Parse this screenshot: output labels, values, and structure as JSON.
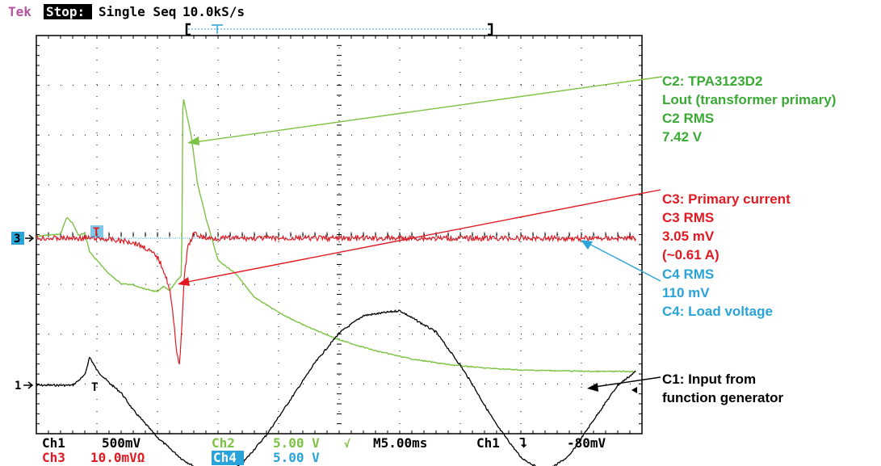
{
  "header": {
    "brand": "Tek",
    "state": "Stop:",
    "mode": "Single Seq",
    "rate": "10.0kS/s"
  },
  "markers": {
    "ch3": "3",
    "ch1": "1",
    "trigger": "T"
  },
  "readout": {
    "ch1_label": "Ch1",
    "ch1_scale": "500mV",
    "ch2_label": "Ch2",
    "ch2_scale": "5.00 V",
    "ch2_bw": "√",
    "timebase": "M5.00ms",
    "trig_src": "Ch1",
    "trig_slope": "⮧",
    "trig_level": "-80mV",
    "ch3_label": "Ch3",
    "ch3_scale": "10.0mVΩ",
    "ch4_label": "Ch4",
    "ch4_scale": "5.00 V"
  },
  "annotations": {
    "c2": [
      "C2: TPA3123D2",
      "Lout (transformer primary)",
      "C2 RMS",
      "7.42 V"
    ],
    "c3": [
      "C3: Primary current",
      "C3 RMS",
      "3.05 mV",
      "(~0.61 A)"
    ],
    "c4": [
      "C4 RMS",
      "110 mV",
      "C4: Load voltage"
    ],
    "c1": [
      "C1: Input from",
      "function generator"
    ]
  },
  "colors": {
    "ch1": "#000000",
    "ch2": "#7cc243",
    "ch2_text": "#3aaa35",
    "ch3": "#e01a22",
    "ch4": "#29a3d8",
    "brand": "#b5539f",
    "grid": "#000000"
  },
  "chart_data": {
    "type": "line",
    "x_unit": "ms",
    "xlim": [
      0,
      50
    ],
    "grid": true,
    "series": [
      {
        "name": "C1: Input from function generator",
        "unit": "V",
        "x": [
          0,
          3,
          4,
          4.4,
          5,
          6,
          7,
          8,
          10,
          12,
          14,
          15,
          16,
          17,
          19,
          21,
          23,
          25,
          27,
          30,
          33,
          35,
          36,
          37,
          38,
          40,
          42,
          44,
          46,
          48,
          49.5
        ],
        "values": [
          0,
          0,
          0.2,
          0.57,
          0.3,
          0.05,
          -0.15,
          -0.5,
          -1.05,
          -1.48,
          -1.78,
          -1.82,
          -1.74,
          -1.57,
          -1.0,
          -0.28,
          0.45,
          1.05,
          1.4,
          1.5,
          1.07,
          0.4,
          0.02,
          -0.4,
          -0.8,
          -1.45,
          -1.75,
          -1.42,
          -0.7,
          0.0,
          0.28
        ]
      },
      {
        "name": "C2: TPA3123D2 Lout (transformer primary)",
        "unit": "V",
        "x": [
          0,
          2,
          2.5,
          3,
          3.5,
          4,
          4.4,
          5,
          6,
          7,
          8,
          9,
          10,
          10.5,
          11,
          11.5,
          12,
          12.1,
          12.4,
          12.8,
          13.3,
          14,
          15,
          16.5,
          18,
          20,
          22,
          25,
          28,
          31,
          34,
          37,
          40,
          43,
          46,
          49.5
        ],
        "values": [
          0.15,
          0.3,
          1.5,
          1.1,
          0.2,
          0.4,
          -1.0,
          -1.6,
          -2.6,
          -3.3,
          -3.4,
          -3.7,
          -3.9,
          -3.5,
          -3.8,
          -3.2,
          -2.7,
          10.4,
          9.1,
          7.4,
          4.0,
          1.5,
          -1.6,
          -2.6,
          -4.3,
          -5.4,
          -6.3,
          -7.4,
          -8.2,
          -8.8,
          -9.2,
          -9.45,
          -9.6,
          -9.65,
          -9.7,
          -9.7
        ]
      },
      {
        "name": "C3: Primary current",
        "unit": "mV",
        "x": [
          0,
          5,
          8,
          9,
          10,
          10.5,
          11,
          11.3,
          11.6,
          11.8,
          12,
          12.2,
          12.5,
          13,
          14,
          20,
          30,
          40,
          49.5
        ],
        "values": [
          0,
          0,
          -0.25,
          -0.6,
          -1.2,
          -2.0,
          -3.2,
          -5.0,
          -7.2,
          -8.05,
          -6.0,
          -2.5,
          -0.6,
          0.3,
          0,
          0,
          0,
          0,
          0
        ]
      },
      {
        "name": "C4: Load voltage",
        "unit": "V",
        "x": [
          0,
          49.5
        ],
        "values": [
          0,
          0
        ]
      }
    ]
  }
}
